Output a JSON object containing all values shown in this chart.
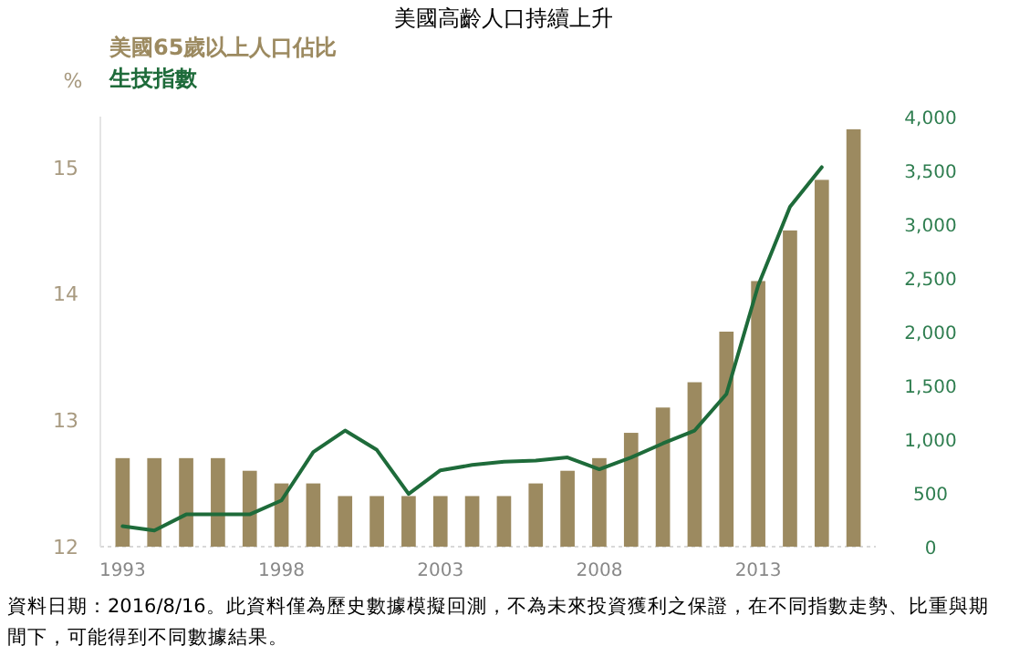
{
  "chart_data": {
    "type": "bar",
    "title": "美國高齡人口持續上升",
    "ylabel": "%",
    "x": [
      1993,
      1994,
      1995,
      1996,
      1997,
      1998,
      1999,
      2000,
      2001,
      2002,
      2003,
      2004,
      2005,
      2006,
      2007,
      2008,
      2009,
      2010,
      2011,
      2012,
      2013,
      2014,
      2015,
      2016
    ],
    "xlim": [
      1992.3,
      2016.7
    ],
    "xticks": [
      1993,
      1998,
      2003,
      2008,
      2013
    ],
    "ylim": [
      12,
      15.4
    ],
    "yticks": [
      12,
      13,
      14,
      15
    ],
    "y2lim": [
      0,
      4000
    ],
    "y2ticks": [
      {
        "value": 0,
        "label": "0"
      },
      {
        "value": 500,
        "label": "500"
      },
      {
        "value": 1000,
        "label": "1,000"
      },
      {
        "value": 1500,
        "label": "1,500"
      },
      {
        "value": 2000,
        "label": "2,000"
      },
      {
        "value": 2500,
        "label": "2,500"
      },
      {
        "value": 3000,
        "label": "3,000"
      },
      {
        "value": 3500,
        "label": "3,500"
      },
      {
        "value": 4000,
        "label": "4,000"
      }
    ],
    "series": [
      {
        "name": "美國65歲以上人口佔比",
        "color": "#9c8a60",
        "values": [
          12.7,
          12.7,
          12.7,
          12.7,
          12.6,
          12.5,
          12.5,
          12.4,
          12.4,
          12.4,
          12.4,
          12.4,
          12.4,
          12.5,
          12.6,
          12.7,
          12.9,
          13.1,
          13.3,
          13.7,
          14.1,
          14.5,
          14.9,
          15.3
        ]
      },
      {
        "name": "生技指數",
        "type": "line",
        "axis": "y2",
        "color": "#1e6b3a",
        "values": [
          190,
          150,
          300,
          300,
          300,
          430,
          880,
          1080,
          900,
          490,
          710,
          760,
          790,
          800,
          830,
          720,
          830,
          960,
          1080,
          1420,
          2430,
          3160,
          3530,
          null
        ]
      }
    ],
    "legend": "top left",
    "grid": false,
    "annotations": [
      "資料日期：2016/8/16。此資料僅為歷史數據模擬回測，不為未來投資獲利之保證，在不同指數走勢、比重與期間下，可能得到不同數據結果。"
    ]
  }
}
